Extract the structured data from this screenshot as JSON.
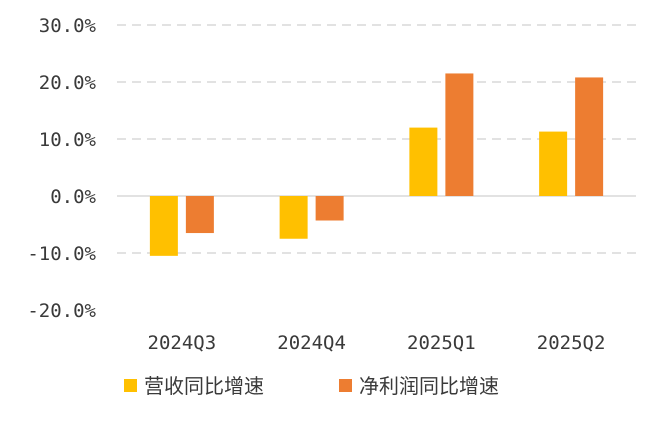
{
  "chart_data": {
    "type": "bar",
    "categories": [
      "2024Q3",
      "2024Q4",
      "2025Q1",
      "2025Q2"
    ],
    "series": [
      {
        "name": "营收同比增速",
        "values": [
          -10.5,
          -7.5,
          12.0,
          11.3
        ]
      },
      {
        "name": "净利润同比增速",
        "values": [
          -6.5,
          -4.3,
          21.5,
          20.8
        ]
      }
    ],
    "colors": [
      "#FFC000",
      "#ED7D31"
    ],
    "ylim": [
      -20,
      30
    ],
    "yticks": [
      {
        "value": 30,
        "label": "30.0%"
      },
      {
        "value": 20,
        "label": "20.0%"
      },
      {
        "value": 10,
        "label": "10.0%"
      },
      {
        "value": 0,
        "label": "0.0%"
      },
      {
        "value": -10,
        "label": "-10.0%"
      },
      {
        "value": -20,
        "label": "-20.0%"
      }
    ],
    "grid": true,
    "legend_position": "bottom",
    "title": "",
    "xlabel": "",
    "ylabel": ""
  }
}
